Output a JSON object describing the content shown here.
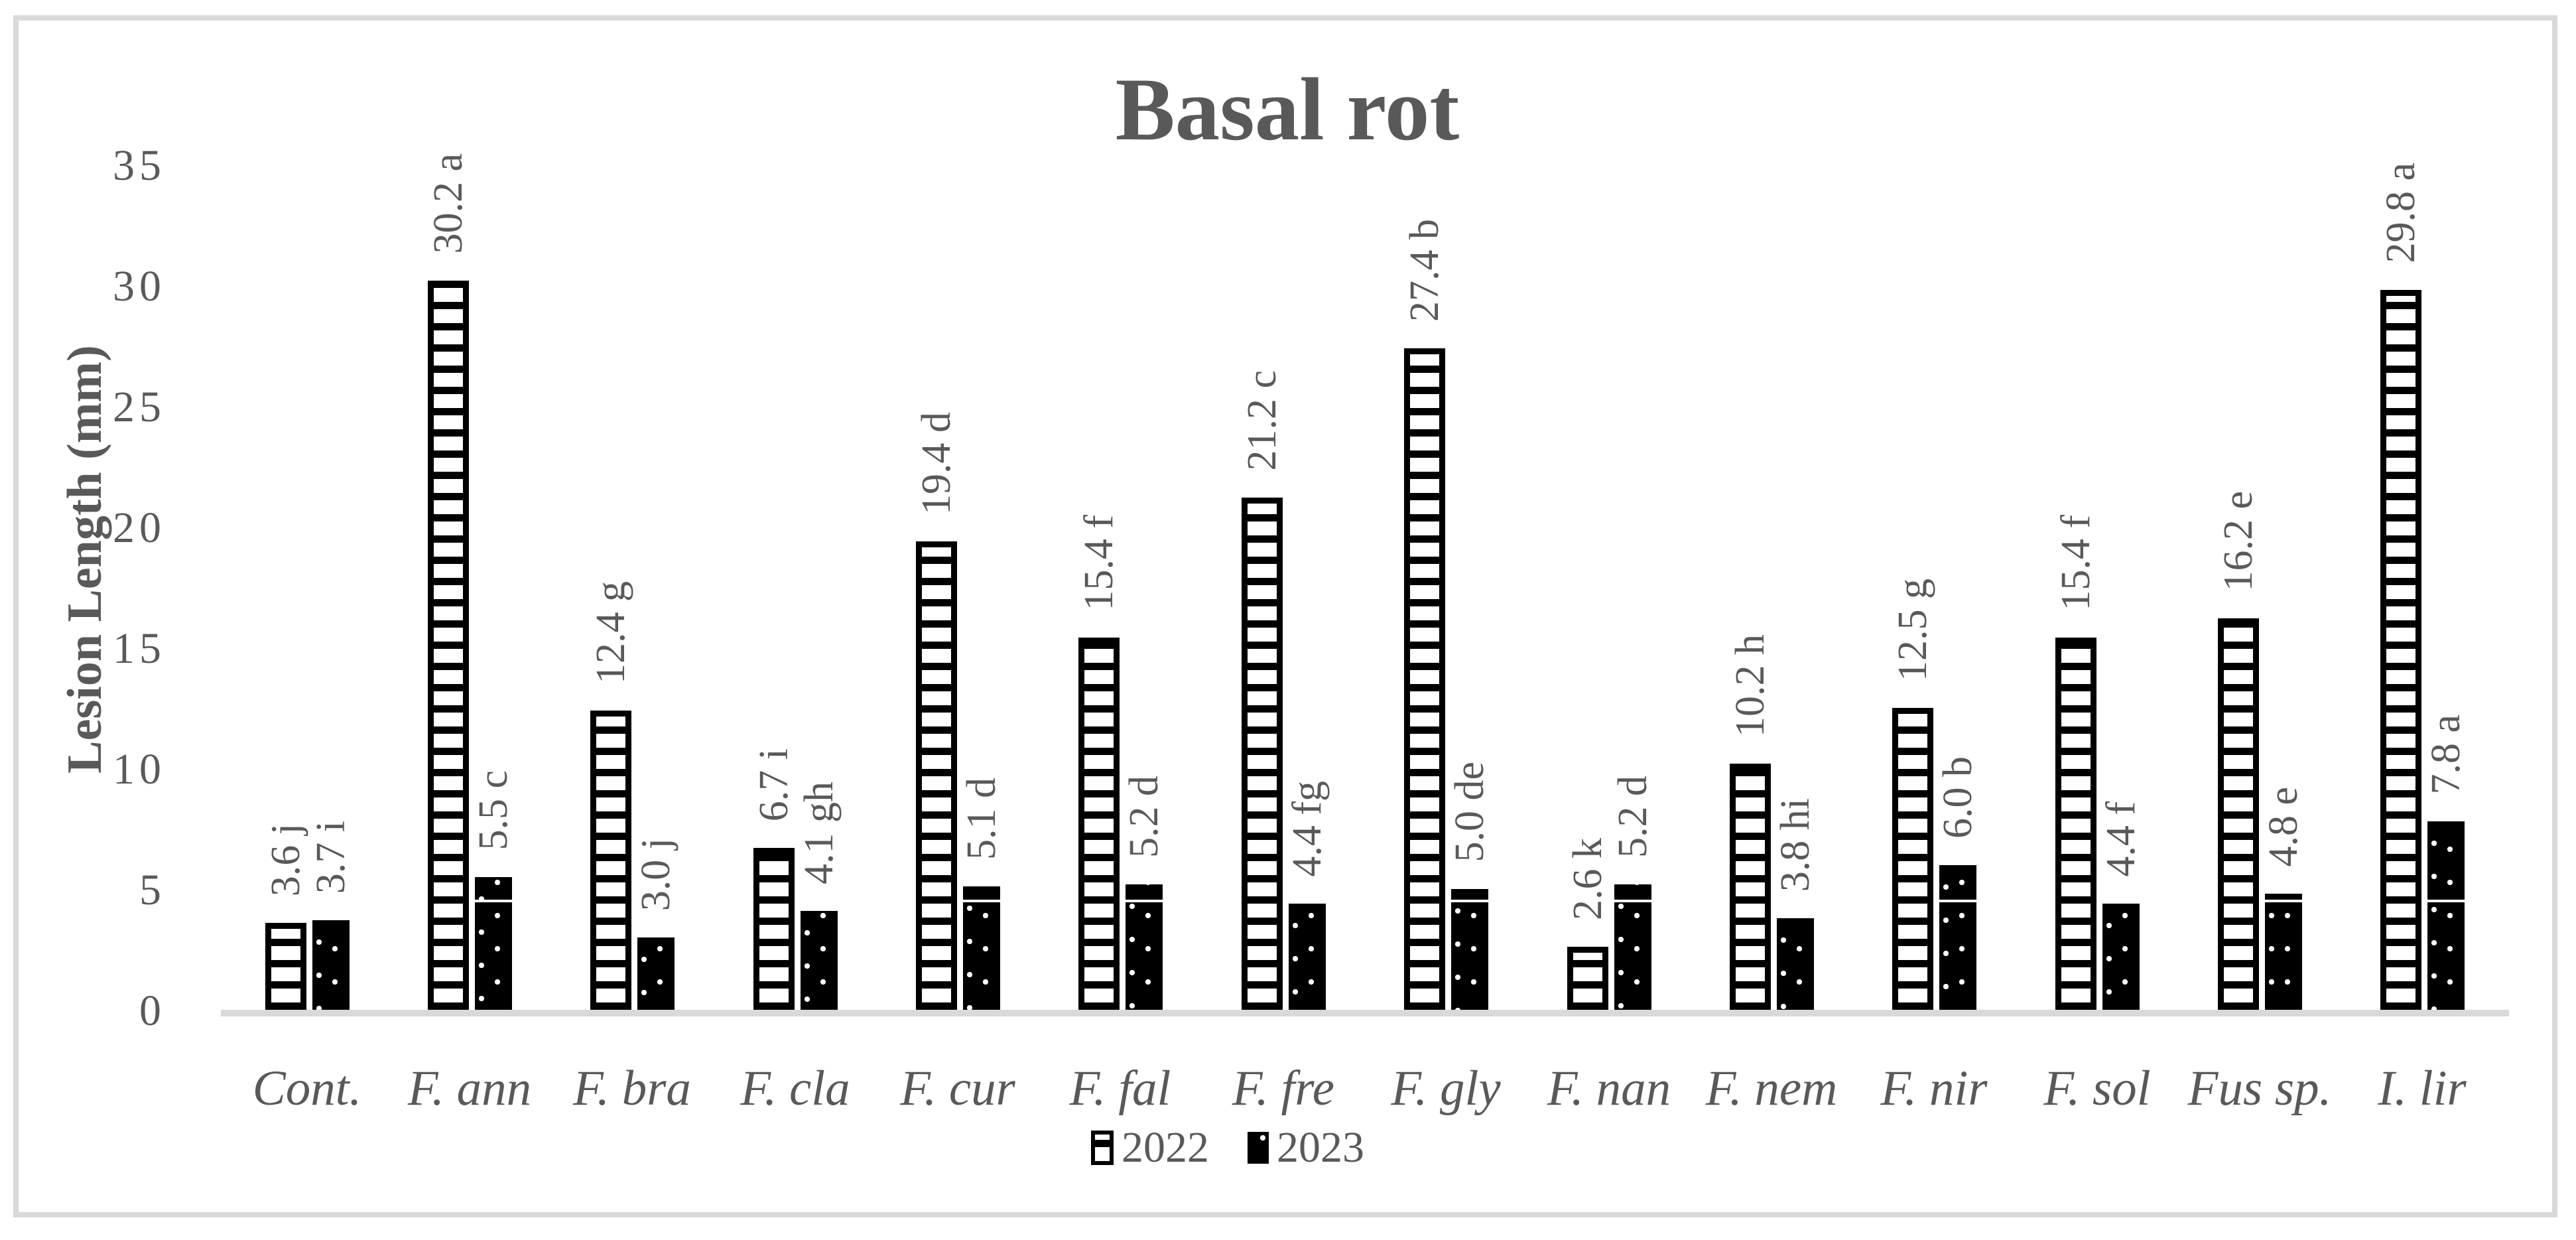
{
  "chart_data": {
    "type": "bar",
    "title": "Basal rot",
    "ylabel": "Lesion Length (mm)",
    "xlabel": "",
    "ylim": [
      0,
      35
    ],
    "yticks": [
      0,
      5,
      10,
      15,
      20,
      25,
      30,
      35
    ],
    "grid": false,
    "legend_position": "bottom-center",
    "categories": [
      "Cont.",
      "F. ann",
      "F. bra",
      "F. cla",
      "F. cur",
      "F. fal",
      "F. fre",
      "F. gly",
      "F. nan",
      "F. nem",
      "F. nir",
      "F. sol",
      "Fus sp.",
      "I. lir"
    ],
    "series": [
      {
        "name": "2022",
        "pattern": "horizontal-stripes",
        "values": [
          3.6,
          30.2,
          12.4,
          6.7,
          19.4,
          15.4,
          21.2,
          27.4,
          2.6,
          10.2,
          12.5,
          15.4,
          16.2,
          29.8
        ],
        "labels": [
          "3.6 j",
          "30.2 a",
          "12.4 g",
          "6.7 i",
          "19.4 d",
          "15.4 f",
          "21.2 c",
          "27.4 b",
          "2.6 k",
          "10.2 h",
          "12.5 g",
          "15.4 f",
          "16.2 e",
          "29.8 a"
        ]
      },
      {
        "name": "2023",
        "pattern": "black-dotted",
        "values": [
          3.7,
          5.5,
          3.0,
          4.1,
          5.1,
          5.2,
          4.4,
          5.0,
          5.2,
          3.8,
          6.0,
          4.4,
          4.8,
          7.8
        ],
        "labels": [
          "3.7 i",
          "5.5 c",
          "3.0 j",
          "4.1 gh",
          "5.1 d",
          "5.2 d",
          "4.4 fg",
          "5.0 de",
          "5.2 d",
          "3.8 hi",
          "6.0 b",
          "4.4 f",
          "4.8 e",
          "7.8 a"
        ]
      }
    ],
    "legend": [
      "2022",
      "2023"
    ]
  },
  "colors": {
    "text": "#595959",
    "bar_fill": "#000000",
    "axis_line": "#d9d9d9",
    "frame_border": "#d9d9d9",
    "background": "#ffffff"
  }
}
